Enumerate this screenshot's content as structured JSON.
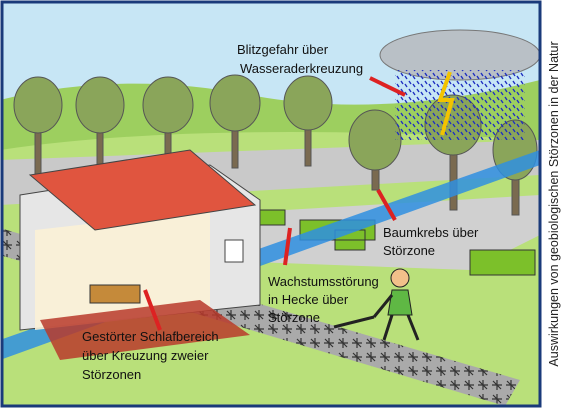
{
  "caption": "Auswirkungen von geobiologischen Störzonen in der Natur",
  "labels": [
    {
      "lines": [
        "Blitzgefahr über",
        "Wasseraderkreuzung"
      ]
    },
    {
      "lines": [
        "Baumkrebs über",
        "Störzone"
      ]
    },
    {
      "lines": [
        "Wachstumsstörung",
        "in Hecke über",
        "Störzone"
      ]
    },
    {
      "lines": [
        "Gestörter Schlafbereich",
        "über Kreuzung zweier",
        "Störzonen"
      ]
    }
  ]
}
